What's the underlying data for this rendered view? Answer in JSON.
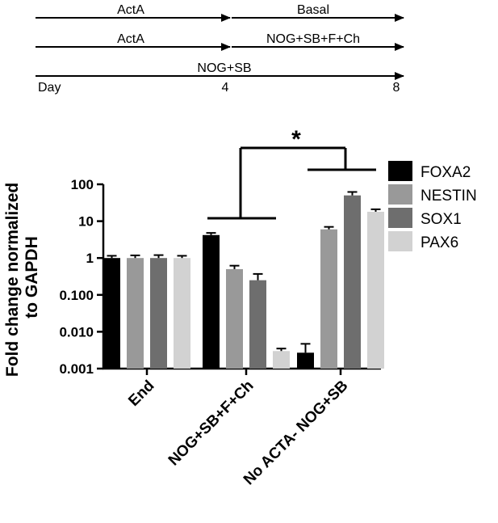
{
  "timeline": {
    "rows": [
      {
        "left_label": "ActA",
        "right_label": "Basal"
      },
      {
        "left_label": "ActA",
        "right_label": "NOG+SB+F+Ch"
      },
      {
        "full_label": "NOG+SB"
      }
    ],
    "day_label": "Day",
    "day_ticks": [
      "4",
      "8"
    ]
  },
  "significance": {
    "marker": "*"
  },
  "chart_data": {
    "type": "bar",
    "ylabel_lines": [
      "Fold change normalized",
      "to GAPDH"
    ],
    "yscale": "log",
    "ylim": [
      0.001,
      100
    ],
    "yticks": [
      "0.001",
      "0.010",
      "0.100",
      "1",
      "10",
      "100"
    ],
    "categories": [
      "End",
      "NOG+SB+F+Ch",
      "No ACTA- NOG+SB"
    ],
    "series": [
      {
        "name": "FOXA2",
        "color": "#000000",
        "values": [
          1.0,
          4.2,
          0.0027
        ],
        "errors": [
          0.15,
          0.6,
          0.002
        ]
      },
      {
        "name": "NESTIN",
        "color": "#999999",
        "values": [
          1.0,
          0.5,
          6.0
        ],
        "errors": [
          0.18,
          0.12,
          1.0
        ]
      },
      {
        "name": "SOX1",
        "color": "#6e6e6e",
        "values": [
          1.0,
          0.25,
          50
        ],
        "errors": [
          0.2,
          0.12,
          12
        ]
      },
      {
        "name": "PAX6",
        "color": "#d2d2d2",
        "values": [
          1.0,
          0.003,
          18
        ],
        "errors": [
          0.15,
          0.0005,
          3
        ]
      }
    ],
    "legend_position": "right",
    "grid": false
  }
}
